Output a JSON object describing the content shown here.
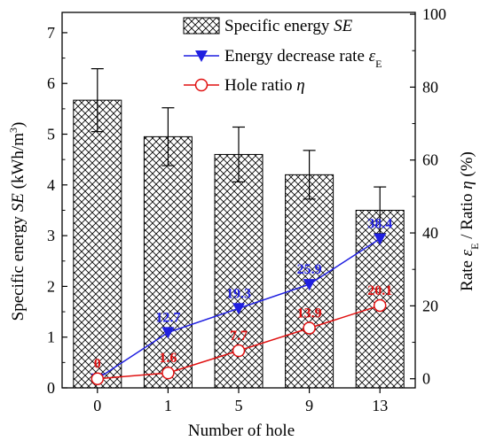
{
  "chart_data": {
    "type": "bar",
    "xlabel": "Number of hole",
    "categories": [
      "0",
      "1",
      "5",
      "9",
      "13"
    ],
    "ylabel_left": {
      "prefix": "Specific energy ",
      "italic": "SE",
      "suffix": " (kWh/m",
      "sup": "3",
      "close": ")"
    },
    "ylabel_right": {
      "prefix": "Rate ",
      "italic1": "ε",
      "sub": "E",
      "middle": " / Ratio ",
      "italic2": "η",
      "suffix": " (%)"
    },
    "ylim_left": [
      0,
      7.4
    ],
    "ylim_right": [
      -2.5,
      100.5
    ],
    "yticks_left": [
      "0",
      "1",
      "2",
      "3",
      "4",
      "5",
      "6",
      "7"
    ],
    "yticks_right": [
      "0",
      "20",
      "40",
      "60",
      "80",
      "100"
    ],
    "bars": {
      "name_prefix": "Specific energy ",
      "name_italic": "SE",
      "values": [
        5.67,
        4.95,
        4.6,
        4.2,
        3.5
      ],
      "errors": [
        0.62,
        0.57,
        0.54,
        0.48,
        0.46
      ]
    },
    "series": [
      {
        "name_prefix": "Energy decrease rate ",
        "name_italic": "ε",
        "name_sub": "E",
        "color": "#1f1fe0",
        "marker": "triangle-down",
        "values": [
          0,
          12.7,
          19.3,
          25.9,
          38.4
        ],
        "labels": [
          "",
          "12.7",
          "19.3",
          "25.9",
          "38.4"
        ]
      },
      {
        "name_prefix": "Hole ratio ",
        "name_italic": "η",
        "color": "#e01010",
        "marker": "circle-open",
        "values": [
          0,
          1.6,
          7.7,
          13.9,
          20.1
        ],
        "labels": [
          "0",
          "1.6",
          "7.7",
          "13.9",
          "20.1"
        ]
      }
    ],
    "legend_position": "top-right",
    "grid": false
  }
}
